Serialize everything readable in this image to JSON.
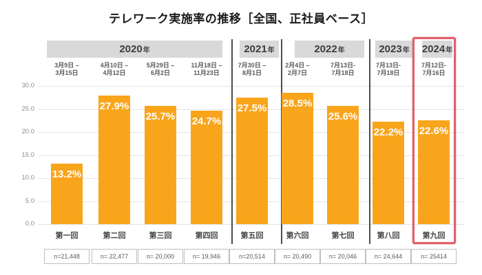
{
  "title": "テレワーク実施率の推移［全国、正社員ベース］",
  "chart_data": {
    "type": "bar",
    "title": "テレワーク実施率の推移［全国、正社員ベース］",
    "xlabel": "",
    "ylabel": "",
    "ylim": [
      0,
      30
    ],
    "yticks": [
      0,
      5,
      10,
      15,
      20,
      25,
      30
    ],
    "ytick_labels": [
      "0.0",
      "5.0",
      "10.0",
      "15.0",
      "20.0",
      "25.0",
      "30.0"
    ],
    "grid": true,
    "bar_color": "#F9A51C",
    "bar_label_color": "#ffffff",
    "year_header_bg": "#d9d9d9",
    "highlight_border_color": "#e0606c",
    "groups": [
      {
        "year": "2020",
        "suffix": "年",
        "cols": [
          0,
          1,
          2,
          3
        ],
        "highlight": false
      },
      {
        "year": "2021",
        "suffix": "年",
        "cols": [
          4
        ],
        "highlight": false
      },
      {
        "year": "2022",
        "suffix": "年",
        "cols": [
          5,
          6
        ],
        "highlight": false
      },
      {
        "year": "2023",
        "suffix": "年",
        "cols": [
          7
        ],
        "highlight": false
      },
      {
        "year": "2024",
        "suffix": "年",
        "cols": [
          8
        ],
        "highlight": true
      }
    ],
    "columns": [
      {
        "round": "第一回",
        "date": "3月9日 –\n3月15日",
        "value": 13.2,
        "label": "13.2%",
        "n": "n=21,448"
      },
      {
        "round": "第二回",
        "date": "4月10日 –\n4月12日",
        "value": 27.9,
        "label": "27.9%",
        "n": "n= 22,477"
      },
      {
        "round": "第三回",
        "date": "5月29日 –\n6月2日",
        "value": 25.7,
        "label": "25.7%",
        "n": "n= 20,000"
      },
      {
        "round": "第四回",
        "date": "11月18日 –\n11月23日",
        "value": 24.7,
        "label": "24.7%",
        "n": "n= 19,946"
      },
      {
        "round": "第五回",
        "date": "7月30日 –\n8月1日",
        "value": 27.5,
        "label": "27.5%",
        "n": "n=20,514"
      },
      {
        "round": "第六回",
        "date": "2月4日 –\n2月7日",
        "value": 28.5,
        "label": "28.5%",
        "n": "n= 20,490"
      },
      {
        "round": "第七回",
        "date": "7月13日-\n7月18日",
        "value": 25.6,
        "label": "25.6%",
        "n": "n= 20,046"
      },
      {
        "round": "第八回",
        "date": "7月13日-\n7月18日",
        "value": 22.2,
        "label": "22.2%",
        "n": "n= 24,644"
      },
      {
        "round": "第九回",
        "date": "7月12日-\n7月16日",
        "value": 22.6,
        "label": "22.6%",
        "n": "n= 25414"
      }
    ]
  }
}
